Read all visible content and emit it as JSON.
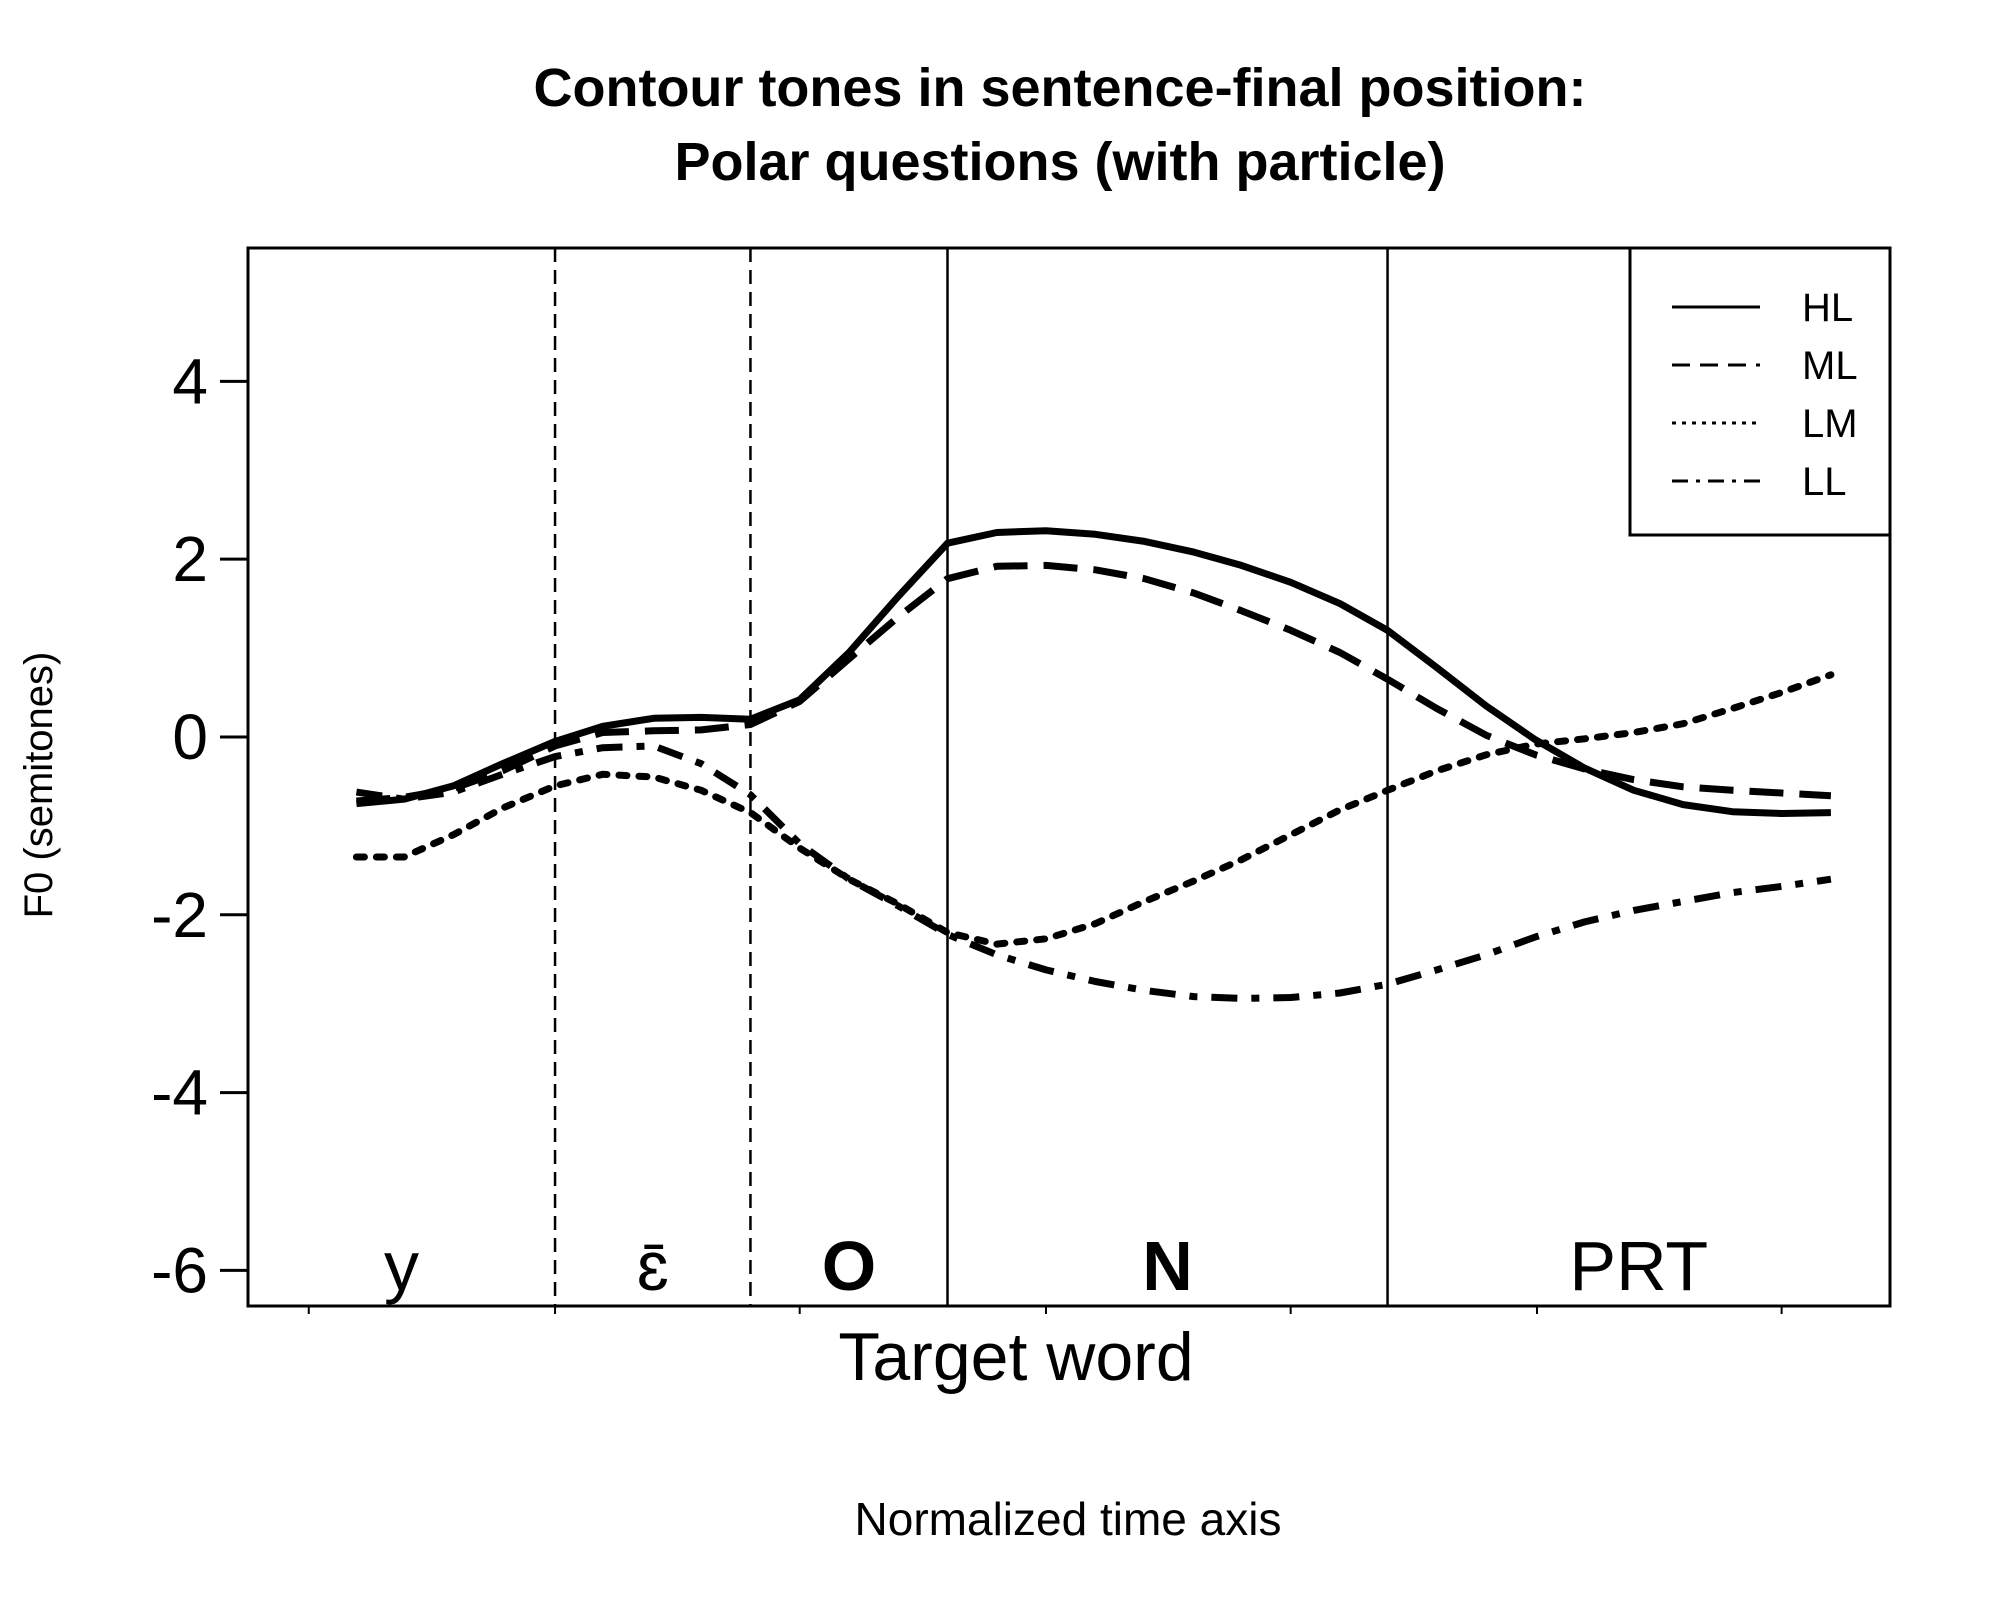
{
  "chart_data": {
    "type": "line",
    "title_line1": "Contour tones in sentence-final position:",
    "title_line2": "Polar questions (with particle)",
    "ylabel": "F0 (semitones)",
    "xlabel": "Target word",
    "xlabel_secondary": "Normalized time axis",
    "ylim": [
      -6.4,
      5.5
    ],
    "y_ticks": [
      {
        "value": 4,
        "label": "4"
      },
      {
        "value": 2,
        "label": "2"
      },
      {
        "value": 0,
        "label": "0"
      },
      {
        "value": -2,
        "label": "-2"
      },
      {
        "value": -4,
        "label": "-4"
      },
      {
        "value": -6,
        "label": "-6"
      }
    ],
    "xlim": [
      0,
      1
    ],
    "x_minor_ticks": [
      0.037,
      0.187,
      0.336,
      0.486,
      0.635,
      0.785,
      0.934
    ],
    "segments": [
      {
        "label": "y",
        "start": 0.0,
        "end": 0.187,
        "bold": false,
        "boundary": "dashed"
      },
      {
        "label": "ɛ̄",
        "start": 0.187,
        "end": 0.306,
        "bold": false,
        "boundary": "dashed"
      },
      {
        "label": "O",
        "start": 0.306,
        "end": 0.426,
        "bold": true,
        "boundary": "solid"
      },
      {
        "label": "N",
        "start": 0.426,
        "end": 0.694,
        "bold": true,
        "boundary": "solid"
      },
      {
        "label": "PRT",
        "start": 0.694,
        "end": 1.0,
        "bold": false,
        "boundary": "none"
      }
    ],
    "legend": {
      "position": "top-right",
      "entries": [
        "HL",
        "ML",
        "LM",
        "LL"
      ]
    },
    "series": [
      {
        "name": "HL",
        "style": "solid",
        "points": [
          [
            0.066,
            -0.75
          ],
          [
            0.095,
            -0.7
          ],
          [
            0.125,
            -0.55
          ],
          [
            0.155,
            -0.3
          ],
          [
            0.187,
            -0.05
          ],
          [
            0.216,
            0.12
          ],
          [
            0.247,
            0.21
          ],
          [
            0.276,
            0.22
          ],
          [
            0.306,
            0.2
          ],
          [
            0.336,
            0.42
          ],
          [
            0.366,
            0.95
          ],
          [
            0.396,
            1.58
          ],
          [
            0.426,
            2.18
          ],
          [
            0.456,
            2.3
          ],
          [
            0.486,
            2.32
          ],
          [
            0.516,
            2.28
          ],
          [
            0.546,
            2.2
          ],
          [
            0.576,
            2.08
          ],
          [
            0.605,
            1.93
          ],
          [
            0.635,
            1.74
          ],
          [
            0.665,
            1.5
          ],
          [
            0.694,
            1.2
          ],
          [
            0.724,
            0.78
          ],
          [
            0.754,
            0.35
          ],
          [
            0.784,
            -0.03
          ],
          [
            0.814,
            -0.35
          ],
          [
            0.844,
            -0.6
          ],
          [
            0.874,
            -0.76
          ],
          [
            0.904,
            -0.84
          ],
          [
            0.934,
            -0.86
          ],
          [
            0.964,
            -0.85
          ]
        ]
      },
      {
        "name": "ML",
        "style": "dashed",
        "points": [
          [
            0.066,
            -0.72
          ],
          [
            0.095,
            -0.68
          ],
          [
            0.125,
            -0.58
          ],
          [
            0.155,
            -0.38
          ],
          [
            0.187,
            -0.1
          ],
          [
            0.216,
            0.05
          ],
          [
            0.247,
            0.07
          ],
          [
            0.276,
            0.08
          ],
          [
            0.306,
            0.14
          ],
          [
            0.336,
            0.4
          ],
          [
            0.366,
            0.88
          ],
          [
            0.396,
            1.35
          ],
          [
            0.426,
            1.78
          ],
          [
            0.456,
            1.92
          ],
          [
            0.486,
            1.93
          ],
          [
            0.516,
            1.88
          ],
          [
            0.546,
            1.78
          ],
          [
            0.576,
            1.62
          ],
          [
            0.605,
            1.42
          ],
          [
            0.635,
            1.2
          ],
          [
            0.665,
            0.95
          ],
          [
            0.694,
            0.65
          ],
          [
            0.724,
            0.32
          ],
          [
            0.754,
            0.02
          ],
          [
            0.784,
            -0.2
          ],
          [
            0.814,
            -0.36
          ],
          [
            0.844,
            -0.48
          ],
          [
            0.874,
            -0.56
          ],
          [
            0.904,
            -0.6
          ],
          [
            0.934,
            -0.63
          ],
          [
            0.964,
            -0.66
          ]
        ]
      },
      {
        "name": "LM",
        "style": "dotted",
        "points": [
          [
            0.066,
            -1.35
          ],
          [
            0.095,
            -1.35
          ],
          [
            0.125,
            -1.1
          ],
          [
            0.155,
            -0.8
          ],
          [
            0.187,
            -0.55
          ],
          [
            0.216,
            -0.42
          ],
          [
            0.247,
            -0.45
          ],
          [
            0.276,
            -0.6
          ],
          [
            0.306,
            -0.85
          ],
          [
            0.336,
            -1.25
          ],
          [
            0.366,
            -1.6
          ],
          [
            0.396,
            -1.88
          ],
          [
            0.426,
            -2.2
          ],
          [
            0.456,
            -2.33
          ],
          [
            0.486,
            -2.27
          ],
          [
            0.516,
            -2.1
          ],
          [
            0.546,
            -1.85
          ],
          [
            0.576,
            -1.62
          ],
          [
            0.605,
            -1.38
          ],
          [
            0.635,
            -1.1
          ],
          [
            0.665,
            -0.82
          ],
          [
            0.694,
            -0.6
          ],
          [
            0.724,
            -0.38
          ],
          [
            0.754,
            -0.2
          ],
          [
            0.784,
            -0.08
          ],
          [
            0.814,
            -0.02
          ],
          [
            0.844,
            0.05
          ],
          [
            0.874,
            0.15
          ],
          [
            0.904,
            0.32
          ],
          [
            0.934,
            0.5
          ],
          [
            0.964,
            0.7
          ]
        ]
      },
      {
        "name": "LL",
        "style": "dashdot",
        "points": [
          [
            0.066,
            -0.62
          ],
          [
            0.095,
            -0.7
          ],
          [
            0.125,
            -0.62
          ],
          [
            0.155,
            -0.42
          ],
          [
            0.187,
            -0.22
          ],
          [
            0.216,
            -0.12
          ],
          [
            0.247,
            -0.1
          ],
          [
            0.276,
            -0.3
          ],
          [
            0.306,
            -0.65
          ],
          [
            0.336,
            -1.2
          ],
          [
            0.366,
            -1.6
          ],
          [
            0.396,
            -1.9
          ],
          [
            0.426,
            -2.22
          ],
          [
            0.456,
            -2.45
          ],
          [
            0.486,
            -2.62
          ],
          [
            0.516,
            -2.75
          ],
          [
            0.546,
            -2.85
          ],
          [
            0.576,
            -2.92
          ],
          [
            0.605,
            -2.94
          ],
          [
            0.635,
            -2.93
          ],
          [
            0.665,
            -2.88
          ],
          [
            0.694,
            -2.78
          ],
          [
            0.724,
            -2.62
          ],
          [
            0.754,
            -2.45
          ],
          [
            0.784,
            -2.25
          ],
          [
            0.814,
            -2.08
          ],
          [
            0.844,
            -1.95
          ],
          [
            0.874,
            -1.85
          ],
          [
            0.904,
            -1.75
          ],
          [
            0.934,
            -1.68
          ],
          [
            0.964,
            -1.6
          ]
        ]
      }
    ]
  }
}
